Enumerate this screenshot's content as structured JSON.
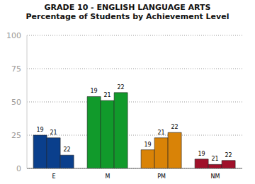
{
  "chart_data": {
    "type": "bar",
    "title": "GRADE 10 - ENGLISH LANGUAGE ARTS",
    "subtitle": "Percentage of Students by Achievement Level",
    "categories": [
      "E",
      "M",
      "PM",
      "NM"
    ],
    "series": [
      {
        "name": "19",
        "values": [
          25,
          54,
          14,
          7
        ]
      },
      {
        "name": "21",
        "values": [
          23,
          51,
          23,
          3
        ]
      },
      {
        "name": "22",
        "values": [
          10,
          57,
          27,
          6
        ]
      }
    ],
    "colors": [
      "#0a3f8c",
      "#119a2b",
      "#d98307",
      "#a0102a"
    ],
    "ylim": [
      0,
      100
    ],
    "yticks": [
      0,
      25,
      50,
      75,
      100
    ],
    "grid": true
  }
}
